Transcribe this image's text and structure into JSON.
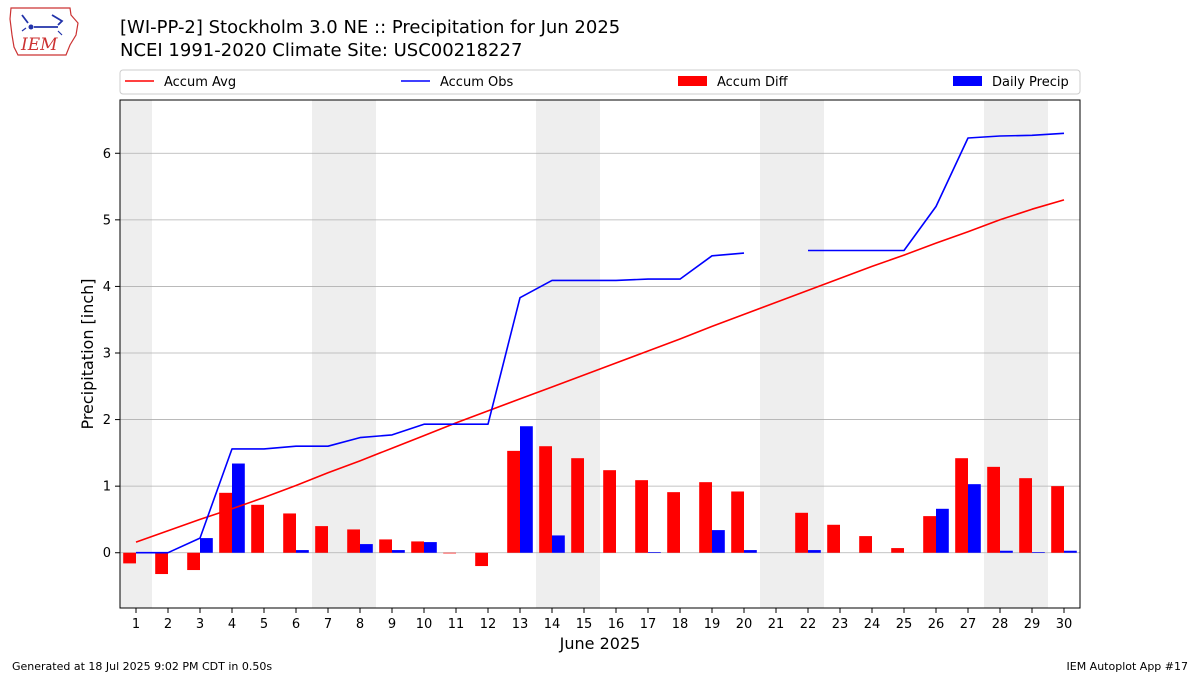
{
  "header": {
    "title_line1": "[WI-PP-2] Stockholm 3.0 NE :: Precipitation for Jun 2025",
    "title_line2": "NCEI 1991-2020 Climate Site: USC00218227",
    "logo_text": "IEM"
  },
  "footer": {
    "generated": "Generated at 18 Jul 2025 9:02 PM CDT in 0.50s",
    "app": "IEM Autoplot App #17"
  },
  "colors": {
    "accum_avg": "#ff0000",
    "accum_obs": "#0000ff",
    "accum_diff": "#ff0000",
    "daily_precip": "#0000ff",
    "weekend_shade": "#eeeeee",
    "grid": "#b0b0b0"
  },
  "chart_data": {
    "type": "bar",
    "xlabel": "June 2025",
    "ylabel": "Precipitation [inch]",
    "ylim": [
      -0.83,
      6.8
    ],
    "yticks": [
      0,
      1,
      2,
      3,
      4,
      5,
      6
    ],
    "grid": "horizontal",
    "legend_position": "top",
    "categories": [
      "1",
      "2",
      "3",
      "4",
      "5",
      "6",
      "7",
      "8",
      "9",
      "10",
      "11",
      "12",
      "13",
      "14",
      "15",
      "16",
      "17",
      "18",
      "19",
      "20",
      "21",
      "22",
      "23",
      "24",
      "25",
      "26",
      "27",
      "28",
      "29",
      "30"
    ],
    "weekend_days": [
      1,
      7,
      8,
      14,
      15,
      21,
      22,
      28,
      29
    ],
    "legend": [
      "Accum Avg",
      "Accum Obs",
      "Accum Diff",
      "Daily Precip"
    ],
    "series": [
      {
        "name": "Accum Avg",
        "kind": "line",
        "values": [
          0.16,
          0.33,
          0.5,
          0.66,
          0.83,
          1.01,
          1.2,
          1.38,
          1.57,
          1.76,
          1.95,
          2.13,
          2.31,
          2.49,
          2.67,
          2.85,
          3.03,
          3.21,
          3.4,
          3.58,
          3.76,
          3.94,
          4.12,
          4.3,
          4.47,
          4.65,
          4.82,
          5.0,
          5.16,
          5.3
        ]
      },
      {
        "name": "Accum Obs",
        "kind": "line",
        "values": [
          0.0,
          0.0,
          0.22,
          1.56,
          1.56,
          1.6,
          1.6,
          1.73,
          1.77,
          1.93,
          1.93,
          1.93,
          3.83,
          4.09,
          4.09,
          4.09,
          4.11,
          4.11,
          4.46,
          4.5,
          null,
          4.54,
          4.54,
          4.54,
          4.54,
          5.2,
          6.23,
          6.26,
          6.27,
          6.3
        ]
      },
      {
        "name": "Accum Diff",
        "kind": "bar",
        "values": [
          -0.16,
          -0.32,
          -0.26,
          0.9,
          0.72,
          0.59,
          0.4,
          0.35,
          0.2,
          0.17,
          -0.01,
          -0.2,
          1.53,
          1.6,
          1.42,
          1.24,
          1.09,
          0.91,
          1.06,
          0.92,
          null,
          0.6,
          0.42,
          0.25,
          0.07,
          0.55,
          1.42,
          1.29,
          1.12,
          1.0
        ]
      },
      {
        "name": "Daily Precip",
        "kind": "bar",
        "values": [
          0,
          0,
          0.22,
          1.34,
          0,
          0.04,
          0,
          0.13,
          0.04,
          0.16,
          0,
          0,
          1.9,
          0.26,
          0,
          0,
          0.01,
          0,
          0.34,
          0.04,
          0,
          0.04,
          0,
          0,
          0,
          0.66,
          1.03,
          0.03,
          0.01,
          0.03
        ]
      }
    ]
  }
}
